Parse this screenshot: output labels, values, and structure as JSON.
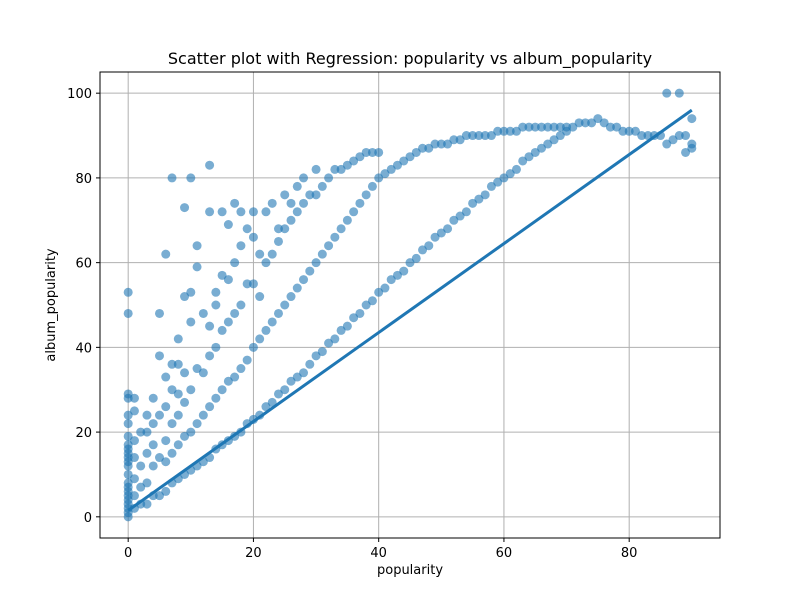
{
  "chart_data": {
    "type": "scatter",
    "title": "Scatter plot with Regression: popularity vs album_popularity",
    "xlabel": "popularity",
    "ylabel": "album_popularity",
    "xlim": [
      -4.5,
      94.5
    ],
    "ylim": [
      -5,
      105
    ],
    "xticks": [
      0,
      20,
      40,
      60,
      80
    ],
    "yticks": [
      0,
      20,
      40,
      60,
      80,
      100
    ],
    "grid": true,
    "point_color": "#1f77b4",
    "point_opacity": 0.6,
    "series": [
      {
        "points": [
          [
            0,
            0
          ],
          [
            0,
            1
          ],
          [
            0,
            2
          ],
          [
            0,
            3
          ],
          [
            0,
            4
          ],
          [
            0,
            5
          ],
          [
            0,
            6
          ],
          [
            0,
            7
          ],
          [
            0,
            8
          ],
          [
            0,
            10
          ],
          [
            0,
            12
          ],
          [
            0,
            13
          ],
          [
            0,
            14
          ],
          [
            0,
            15
          ],
          [
            0,
            16
          ],
          [
            0,
            17
          ],
          [
            0,
            19
          ],
          [
            0,
            22
          ],
          [
            0,
            24
          ],
          [
            0,
            28
          ],
          [
            0,
            29
          ],
          [
            0,
            48
          ],
          [
            0,
            53
          ],
          [
            1,
            2
          ],
          [
            1,
            5
          ],
          [
            1,
            9
          ],
          [
            1,
            14
          ],
          [
            1,
            18
          ],
          [
            1,
            25
          ],
          [
            1,
            28
          ],
          [
            2,
            3
          ],
          [
            2,
            7
          ],
          [
            2,
            12
          ],
          [
            2,
            20
          ],
          [
            3,
            3
          ],
          [
            3,
            8
          ],
          [
            3,
            15
          ],
          [
            3,
            20
          ],
          [
            3,
            24
          ],
          [
            4,
            5
          ],
          [
            4,
            12
          ],
          [
            4,
            17
          ],
          [
            4,
            22
          ],
          [
            4,
            28
          ],
          [
            5,
            5
          ],
          [
            5,
            14
          ],
          [
            5,
            24
          ],
          [
            5,
            38
          ],
          [
            5,
            48
          ],
          [
            6,
            6
          ],
          [
            6,
            13
          ],
          [
            6,
            18
          ],
          [
            6,
            26
          ],
          [
            6,
            33
          ],
          [
            6,
            62
          ],
          [
            7,
            8
          ],
          [
            7,
            15
          ],
          [
            7,
            22
          ],
          [
            7,
            30
          ],
          [
            7,
            36
          ],
          [
            7,
            80
          ],
          [
            8,
            9
          ],
          [
            8,
            17
          ],
          [
            8,
            24
          ],
          [
            8,
            29
          ],
          [
            8,
            36
          ],
          [
            8,
            42
          ],
          [
            9,
            10
          ],
          [
            9,
            19
          ],
          [
            9,
            27
          ],
          [
            9,
            34
          ],
          [
            9,
            52
          ],
          [
            9,
            73
          ],
          [
            10,
            11
          ],
          [
            10,
            20
          ],
          [
            10,
            30
          ],
          [
            10,
            46
          ],
          [
            10,
            53
          ],
          [
            10,
            80
          ],
          [
            11,
            12
          ],
          [
            11,
            22
          ],
          [
            11,
            35
          ],
          [
            11,
            59
          ],
          [
            11,
            64
          ],
          [
            12,
            13
          ],
          [
            12,
            24
          ],
          [
            12,
            34
          ],
          [
            12,
            48
          ],
          [
            13,
            14
          ],
          [
            13,
            26
          ],
          [
            13,
            38
          ],
          [
            13,
            45
          ],
          [
            13,
            72
          ],
          [
            13,
            83
          ],
          [
            14,
            16
          ],
          [
            14,
            28
          ],
          [
            14,
            40
          ],
          [
            14,
            50
          ],
          [
            14,
            53
          ],
          [
            15,
            17
          ],
          [
            15,
            30
          ],
          [
            15,
            44
          ],
          [
            15,
            57
          ],
          [
            15,
            72
          ],
          [
            16,
            18
          ],
          [
            16,
            32
          ],
          [
            16,
            46
          ],
          [
            16,
            56
          ],
          [
            16,
            69
          ],
          [
            17,
            19
          ],
          [
            17,
            33
          ],
          [
            17,
            48
          ],
          [
            17,
            60
          ],
          [
            17,
            74
          ],
          [
            18,
            20
          ],
          [
            18,
            35
          ],
          [
            18,
            50
          ],
          [
            18,
            64
          ],
          [
            18,
            72
          ],
          [
            19,
            22
          ],
          [
            19,
            37
          ],
          [
            19,
            55
          ],
          [
            19,
            68
          ],
          [
            20,
            23
          ],
          [
            20,
            40
          ],
          [
            20,
            55
          ],
          [
            20,
            66
          ],
          [
            20,
            72
          ],
          [
            21,
            24
          ],
          [
            21,
            42
          ],
          [
            21,
            52
          ],
          [
            21,
            62
          ],
          [
            22,
            26
          ],
          [
            22,
            44
          ],
          [
            22,
            60
          ],
          [
            22,
            72
          ],
          [
            23,
            27
          ],
          [
            23,
            46
          ],
          [
            23,
            62
          ],
          [
            23,
            74
          ],
          [
            24,
            29
          ],
          [
            24,
            48
          ],
          [
            24,
            65
          ],
          [
            24,
            68
          ],
          [
            25,
            30
          ],
          [
            25,
            50
          ],
          [
            25,
            68
          ],
          [
            25,
            76
          ],
          [
            26,
            32
          ],
          [
            26,
            52
          ],
          [
            26,
            70
          ],
          [
            26,
            74
          ],
          [
            27,
            33
          ],
          [
            27,
            54
          ],
          [
            27,
            72
          ],
          [
            27,
            78
          ],
          [
            28,
            34
          ],
          [
            28,
            56
          ],
          [
            28,
            74
          ],
          [
            28,
            80
          ],
          [
            29,
            36
          ],
          [
            29,
            58
          ],
          [
            29,
            76
          ],
          [
            30,
            38
          ],
          [
            30,
            60
          ],
          [
            30,
            76
          ],
          [
            30,
            82
          ],
          [
            31,
            39
          ],
          [
            31,
            62
          ],
          [
            31,
            78
          ],
          [
            32,
            41
          ],
          [
            32,
            64
          ],
          [
            32,
            80
          ],
          [
            33,
            42
          ],
          [
            33,
            66
          ],
          [
            33,
            82
          ],
          [
            34,
            44
          ],
          [
            34,
            68
          ],
          [
            34,
            82
          ],
          [
            35,
            45
          ],
          [
            35,
            70
          ],
          [
            35,
            83
          ],
          [
            36,
            47
          ],
          [
            36,
            72
          ],
          [
            36,
            84
          ],
          [
            37,
            48
          ],
          [
            37,
            74
          ],
          [
            37,
            85
          ],
          [
            38,
            50
          ],
          [
            38,
            76
          ],
          [
            38,
            86
          ],
          [
            39,
            51
          ],
          [
            39,
            78
          ],
          [
            39,
            86
          ],
          [
            40,
            53
          ],
          [
            40,
            80
          ],
          [
            40,
            86
          ],
          [
            41,
            54
          ],
          [
            41,
            81
          ],
          [
            42,
            56
          ],
          [
            42,
            82
          ],
          [
            43,
            57
          ],
          [
            43,
            83
          ],
          [
            44,
            58
          ],
          [
            44,
            84
          ],
          [
            45,
            60
          ],
          [
            45,
            85
          ],
          [
            46,
            61
          ],
          [
            46,
            86
          ],
          [
            47,
            63
          ],
          [
            47,
            87
          ],
          [
            48,
            64
          ],
          [
            48,
            87
          ],
          [
            49,
            66
          ],
          [
            49,
            88
          ],
          [
            50,
            67
          ],
          [
            50,
            88
          ],
          [
            51,
            68
          ],
          [
            51,
            88
          ],
          [
            52,
            70
          ],
          [
            52,
            89
          ],
          [
            53,
            71
          ],
          [
            53,
            89
          ],
          [
            54,
            72
          ],
          [
            54,
            90
          ],
          [
            55,
            74
          ],
          [
            55,
            90
          ],
          [
            56,
            75
          ],
          [
            56,
            90
          ],
          [
            57,
            76
          ],
          [
            57,
            90
          ],
          [
            58,
            78
          ],
          [
            58,
            90
          ],
          [
            59,
            79
          ],
          [
            59,
            91
          ],
          [
            60,
            80
          ],
          [
            60,
            91
          ],
          [
            61,
            81
          ],
          [
            61,
            91
          ],
          [
            62,
            82
          ],
          [
            62,
            91
          ],
          [
            63,
            84
          ],
          [
            63,
            92
          ],
          [
            64,
            85
          ],
          [
            64,
            92
          ],
          [
            65,
            86
          ],
          [
            65,
            92
          ],
          [
            66,
            87
          ],
          [
            66,
            92
          ],
          [
            67,
            88
          ],
          [
            67,
            92
          ],
          [
            68,
            89
          ],
          [
            68,
            92
          ],
          [
            69,
            90
          ],
          [
            69,
            92
          ],
          [
            70,
            91
          ],
          [
            70,
            92
          ],
          [
            71,
            92
          ],
          [
            72,
            93
          ],
          [
            73,
            93
          ],
          [
            74,
            93
          ],
          [
            75,
            94
          ],
          [
            76,
            93
          ],
          [
            77,
            92
          ],
          [
            78,
            92
          ],
          [
            79,
            91
          ],
          [
            80,
            91
          ],
          [
            81,
            91
          ],
          [
            82,
            90
          ],
          [
            83,
            90
          ],
          [
            84,
            90
          ],
          [
            85,
            90
          ],
          [
            86,
            88
          ],
          [
            86,
            100
          ],
          [
            87,
            89
          ],
          [
            88,
            90
          ],
          [
            88,
            100
          ],
          [
            89,
            86
          ],
          [
            89,
            90
          ],
          [
            90,
            87
          ],
          [
            90,
            88
          ],
          [
            90,
            94
          ]
        ]
      }
    ],
    "regression": {
      "slope": 1.05,
      "intercept": 1.5,
      "x_range": [
        0,
        90
      ]
    }
  }
}
